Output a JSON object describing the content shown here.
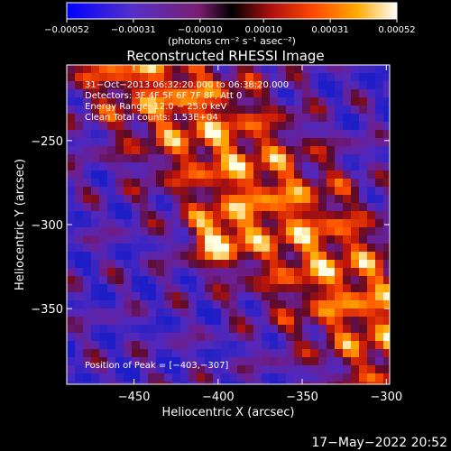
{
  "chart_data": {
    "type": "heatmap",
    "title": "Reconstructed RHESSI Image",
    "xlabel": "Heliocentric X (arcsec)",
    "ylabel": "Heliocentric Y (arcsec)",
    "xlim": [
      -490,
      -298
    ],
    "ylim": [
      -395,
      -205
    ],
    "xticks": [
      -450,
      -400,
      -350,
      -300
    ],
    "xtick_labels": [
      "−450",
      "−400",
      "−350",
      "−300"
    ],
    "yticks": [
      -250,
      -300,
      -350
    ],
    "ytick_labels": [
      "−250",
      "−300",
      "−350"
    ],
    "colorbar": {
      "min": -0.00052,
      "max": 0.00052,
      "ticks": [
        -0.00052,
        -0.00031,
        -0.0001,
        0.0001,
        0.00031,
        0.00052
      ],
      "tick_labels": [
        "−0.00052",
        "−0.00031",
        "−0.00010",
        "0.00010",
        "0.00031",
        "0.00052"
      ],
      "unit_label": "(photons cm⁻² s⁻¹ asec⁻²)"
    },
    "annotations": [
      "31−Oct−2013 06:32:20.000 to 06:38:20.000",
      "Detectors: 3F 4F 5F 6F 7F 8F, Att 0",
      "Energy Range: 12.0 − 25.0 keV",
      "Clean     Total counts: 1.53E+04"
    ],
    "peak_text": "Position of Peak = [−403,−307]",
    "peak": [
      -403,
      -307
    ],
    "timestamp": "17−May−2022 20:52"
  }
}
